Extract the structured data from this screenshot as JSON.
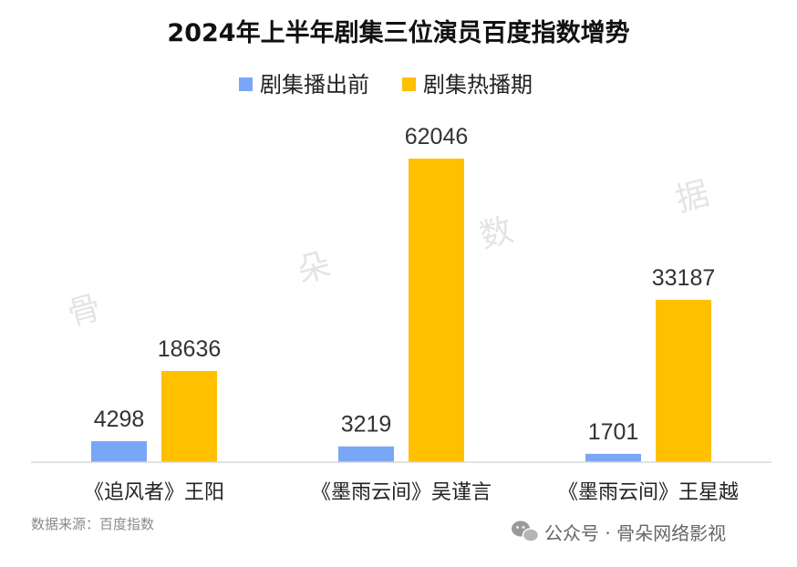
{
  "chart_data": {
    "type": "bar",
    "title": "2024年上半年剧集三位演员百度指数增势",
    "categories": [
      "《追风者》王阳",
      "《墨雨云间》吴谨言",
      "《墨雨云间》王星越"
    ],
    "series": [
      {
        "name": "剧集播出前",
        "values": [
          4298,
          3219,
          1701
        ],
        "color": "#7aa7f5"
      },
      {
        "name": "剧集热播期",
        "values": [
          18636,
          62046,
          33187
        ],
        "color": "#ffc000"
      }
    ],
    "ylim": [
      0,
      62046
    ],
    "grid": false,
    "legend_position": "top"
  },
  "source_note": "数据来源：百度指数",
  "watermark": [
    "骨",
    "朵",
    "数",
    "据"
  ],
  "footer": {
    "icon": "wechat-icon",
    "text": "公众号 · 骨朵网络影视"
  }
}
